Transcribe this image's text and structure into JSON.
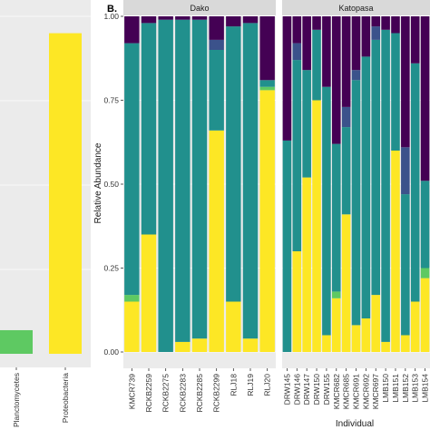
{
  "colors": {
    "panel_bg": "#ebebeb",
    "strip_bg": "#d9d9d9",
    "grid": "#ffffff",
    "axis_text": "#333333"
  },
  "left_panel": {
    "categories": [
      "Planctomycetes",
      "Proteobacteria"
    ],
    "values": [
      0.07,
      0.95
    ],
    "bar_colors": [
      "#5ec962",
      "#fde725"
    ],
    "ylim": [
      0,
      1
    ]
  },
  "chart_data": {
    "type": "bar",
    "stacked": true,
    "panel_tag": "B.",
    "xlabel": "Individual",
    "ylabel": "Relative Abundance",
    "ylim": [
      0,
      1
    ],
    "y_ticks": [
      "0.00",
      "0.25",
      "0.50",
      "0.75",
      "1.00"
    ],
    "y_tick_values": [
      0,
      0.25,
      0.5,
      0.75,
      1.0
    ],
    "grid": true,
    "stack_colors": [
      "#fde725",
      "#5ec962",
      "#21908d",
      "#3b528b",
      "#440154"
    ],
    "facets": [
      {
        "label": "Dako",
        "bars": [
          {
            "name": "KMCR739",
            "values": [
              0.15,
              0.02,
              0.75,
              0.0,
              0.08
            ]
          },
          {
            "name": "RCKB2259",
            "values": [
              0.35,
              0.0,
              0.63,
              0.0,
              0.02
            ]
          },
          {
            "name": "RCKB2275",
            "values": [
              0.0,
              0.0,
              0.99,
              0.0,
              0.01
            ]
          },
          {
            "name": "RCKB2283",
            "values": [
              0.03,
              0.0,
              0.96,
              0.0,
              0.01
            ]
          },
          {
            "name": "RCKB2285",
            "values": [
              0.04,
              0.0,
              0.95,
              0.0,
              0.01
            ]
          },
          {
            "name": "RCKB2299",
            "values": [
              0.66,
              0.0,
              0.24,
              0.03,
              0.07
            ]
          },
          {
            "name": "RLJ18",
            "values": [
              0.15,
              0.0,
              0.82,
              0.0,
              0.03
            ]
          },
          {
            "name": "RLJ19",
            "values": [
              0.04,
              0.0,
              0.94,
              0.0,
              0.02
            ]
          },
          {
            "name": "RLJ20",
            "values": [
              0.78,
              0.01,
              0.02,
              0.0,
              0.19
            ]
          }
        ]
      },
      {
        "label": "Katopasa",
        "bars": [
          {
            "name": "DRW145",
            "values": [
              0.0,
              0.0,
              0.63,
              0.0,
              0.37
            ]
          },
          {
            "name": "DRW146",
            "values": [
              0.3,
              0.0,
              0.57,
              0.05,
              0.08
            ]
          },
          {
            "name": "DRW147",
            "values": [
              0.52,
              0.0,
              0.32,
              0.0,
              0.16
            ]
          },
          {
            "name": "DRW150",
            "values": [
              0.75,
              0.0,
              0.21,
              0.0,
              0.04
            ]
          },
          {
            "name": "DRW155",
            "values": [
              0.05,
              0.0,
              0.74,
              0.0,
              0.21
            ]
          },
          {
            "name": "KMCR682",
            "values": [
              0.16,
              0.02,
              0.44,
              0.0,
              0.38
            ]
          },
          {
            "name": "KMCR685",
            "values": [
              0.41,
              0.0,
              0.26,
              0.06,
              0.27
            ]
          },
          {
            "name": "KMCR691",
            "values": [
              0.08,
              0.0,
              0.73,
              0.03,
              0.16
            ]
          },
          {
            "name": "KMCR692",
            "values": [
              0.1,
              0.0,
              0.78,
              0.0,
              0.12
            ]
          },
          {
            "name": "KMCR697",
            "values": [
              0.17,
              0.0,
              0.76,
              0.04,
              0.03
            ]
          },
          {
            "name": "LMB150",
            "values": [
              0.03,
              0.0,
              0.93,
              0.0,
              0.04
            ]
          },
          {
            "name": "LMB151",
            "values": [
              0.6,
              0.0,
              0.35,
              0.0,
              0.05
            ]
          },
          {
            "name": "LMB152",
            "values": [
              0.05,
              0.0,
              0.42,
              0.14,
              0.39
            ]
          },
          {
            "name": "LMB153",
            "values": [
              0.15,
              0.0,
              0.71,
              0.0,
              0.14
            ]
          },
          {
            "name": "LMB154",
            "values": [
              0.22,
              0.03,
              0.26,
              0.0,
              0.49
            ]
          }
        ]
      }
    ]
  }
}
